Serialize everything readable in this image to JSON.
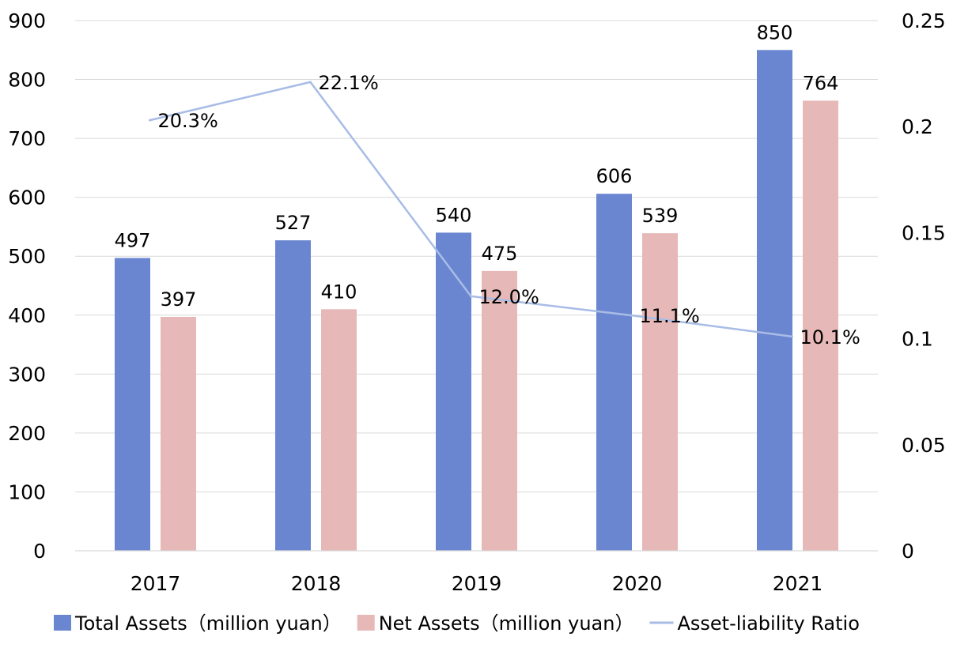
{
  "chart_data": {
    "type": "bar",
    "categories": [
      "2017",
      "2018",
      "2019",
      "2020",
      "2021"
    ],
    "series": [
      {
        "name": "Total Assets（million yuan）",
        "kind": "bar",
        "axis": "left",
        "color": "#6b86d1",
        "values": [
          497,
          527,
          540,
          606,
          850
        ],
        "labels": [
          "497",
          "527",
          "540",
          "606",
          "850"
        ]
      },
      {
        "name": "Net Assets（million yuan）",
        "kind": "bar",
        "axis": "left",
        "color": "#e6b8b7",
        "values": [
          397,
          410,
          475,
          539,
          764
        ],
        "labels": [
          "397",
          "410",
          "475",
          "539",
          "764"
        ]
      },
      {
        "name": "Asset-liability Ratio",
        "kind": "line",
        "axis": "right",
        "color": "#a8bce6",
        "values": [
          0.203,
          0.221,
          0.12,
          0.111,
          0.101
        ],
        "labels": [
          "20.3%",
          "22.1%",
          "12.0%",
          "11.1%",
          "10.1%"
        ]
      }
    ],
    "y_left": {
      "min": 0,
      "max": 900,
      "ticks": [
        "0",
        "100",
        "200",
        "300",
        "400",
        "500",
        "600",
        "700",
        "800",
        "900"
      ]
    },
    "y_right": {
      "min": 0,
      "max": 0.25,
      "ticks": [
        "0",
        "0.05",
        "0.1",
        "0.15",
        "0.2",
        "0.25"
      ]
    },
    "grid": true,
    "legend_position": "bottom"
  }
}
